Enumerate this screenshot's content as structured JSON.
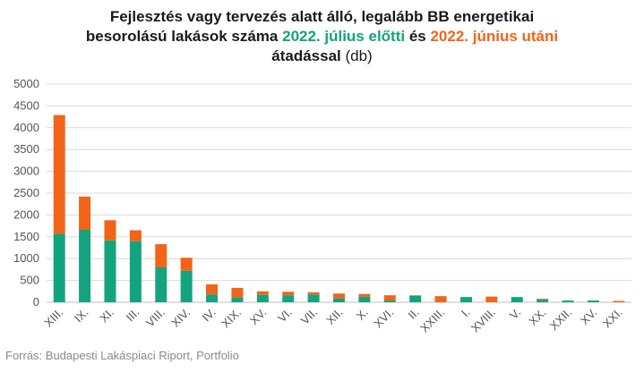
{
  "title": {
    "line1": "Fejlesztés vagy tervezés alatt álló, legalább BB energetikai",
    "line2_start": "besorolású lakások száma ",
    "line2_green": "2022. július előtti",
    "line2_mid": " és ",
    "line2_orange": "2022. június utáni",
    "line3_bold": "átadással",
    "line3_unit": " (db)"
  },
  "source": "Forrás: Budapesti Lakáspiaci Riport, Portfolio",
  "colors": {
    "before": "#14a37f",
    "after": "#f26419",
    "grid": "#d9d9d9",
    "axis": "#bfbfbf"
  },
  "chart_data": {
    "type": "bar",
    "stacked": true,
    "categories": [
      "XIII.",
      "IX.",
      "XI.",
      "III.",
      "VIII.",
      "XIV.",
      "IV.",
      "XIX.",
      "XV.",
      "VI.",
      "VII.",
      "XII.",
      "X.",
      "XVI.",
      "II.",
      "XXIII.",
      "I.",
      "XVIII.",
      "V.",
      "XX.",
      "XXII.",
      "XV.",
      "XXI."
    ],
    "series": [
      {
        "name": "2022. július előtti",
        "values": [
          1570,
          1660,
          1420,
          1400,
          800,
          720,
          180,
          110,
          170,
          160,
          180,
          90,
          130,
          40,
          150,
          0,
          120,
          0,
          120,
          60,
          40,
          40,
          0
        ]
      },
      {
        "name": "2022. június utáni",
        "values": [
          2720,
          760,
          460,
          250,
          530,
          300,
          230,
          220,
          80,
          80,
          50,
          110,
          60,
          120,
          10,
          140,
          0,
          130,
          0,
          20,
          0,
          0,
          30
        ]
      }
    ],
    "yticks": [
      0,
      500,
      1000,
      1500,
      2000,
      2500,
      3000,
      3500,
      4000,
      4500,
      5000
    ],
    "ylim": [
      0,
      5000
    ],
    "grid": true,
    "legend": "none"
  }
}
